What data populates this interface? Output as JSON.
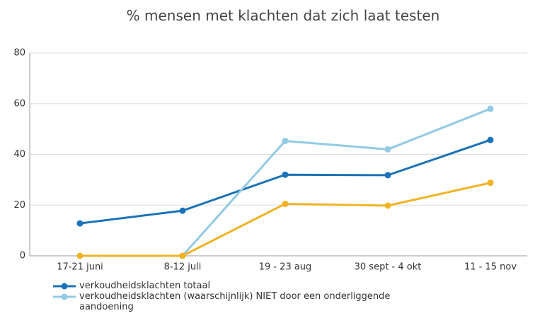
{
  "chart_data": {
    "type": "line",
    "title": "% mensen met klachten dat zich laat testen",
    "categories": [
      "17-21 juni",
      "8-12 juli",
      "19 - 23 aug",
      "30 sept - 4 okt",
      "11 - 15 nov"
    ],
    "series": [
      {
        "name": "verkoudheidsklachten totaal",
        "color": "#1a72b8",
        "values": [
          12.8,
          17.8,
          32,
          31.8,
          45.7
        ]
      },
      {
        "name": "verkoudheidsklachten (waarschijnlijk) NIET door een onderliggende aandoening",
        "color": "#92cae4",
        "values": [
          null,
          0,
          45.3,
          42,
          58
        ]
      },
      {
        "color": "#f0b323",
        "values": [
          0,
          0,
          20.5,
          19.8,
          28.8
        ]
      }
    ],
    "ylim": [
      0,
      80
    ],
    "yticks": [
      0,
      20,
      40,
      60,
      80
    ],
    "grid": true
  }
}
